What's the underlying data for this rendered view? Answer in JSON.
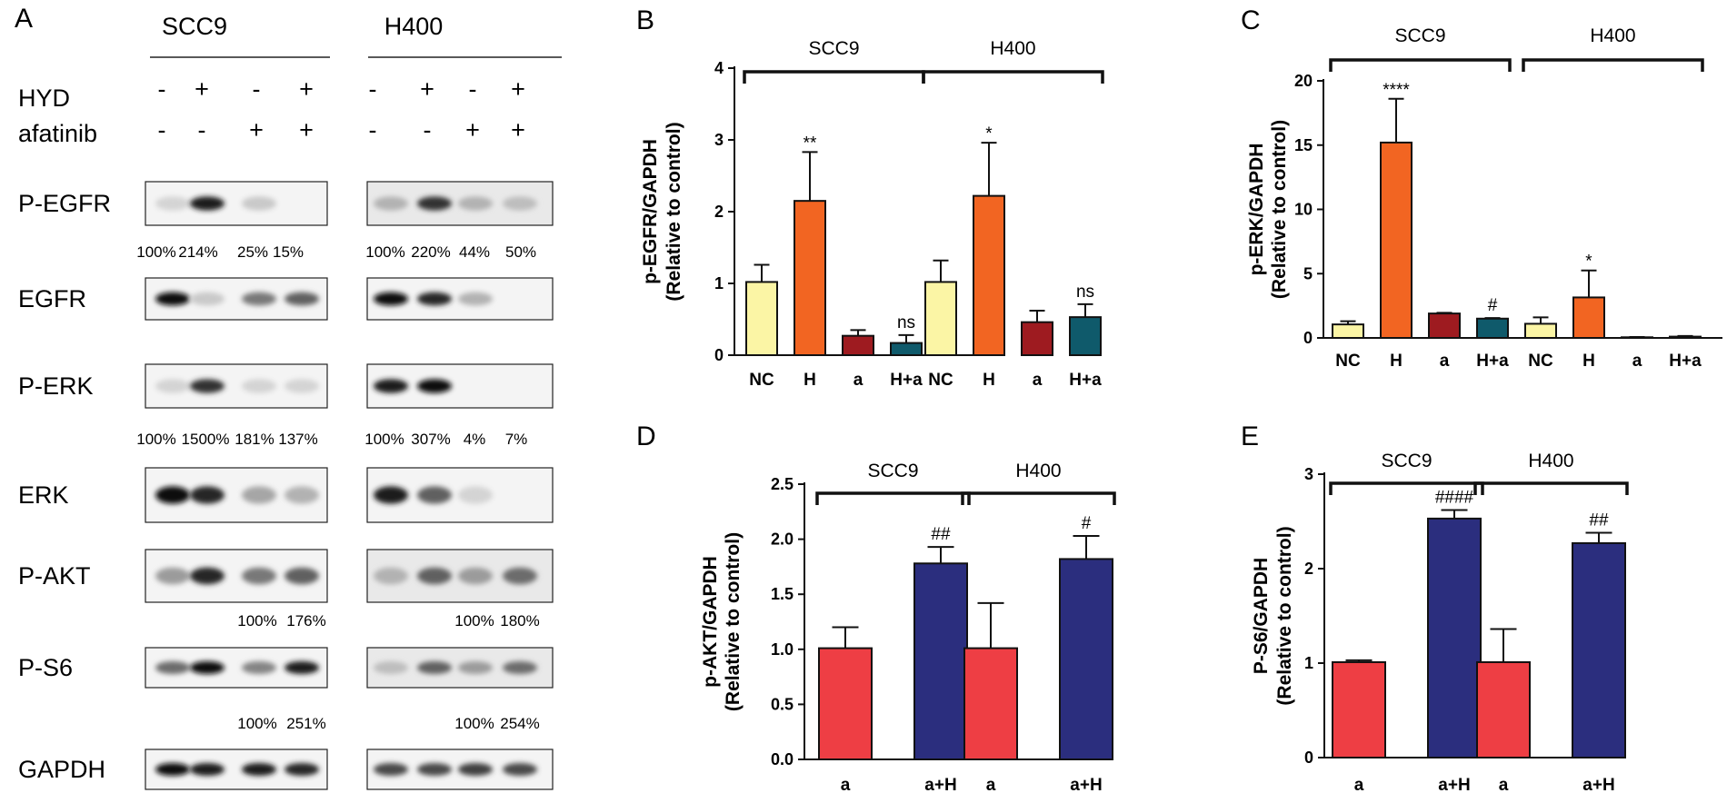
{
  "panel_a": {
    "letter": "A",
    "cell_lines": [
      "SCC9",
      "H400"
    ],
    "treatment_rows": [
      {
        "label": "HYD",
        "signs": [
          "-",
          "+",
          "-",
          "+"
        ]
      },
      {
        "label": "afatinib",
        "signs": [
          "-",
          "-",
          "+",
          "+"
        ]
      }
    ],
    "blots": [
      {
        "label": "P-EGFR",
        "scc9_pct": [
          "100%",
          "214%",
          "25%",
          "15%"
        ],
        "h400_pct": [
          "100%",
          "220%",
          "44%",
          "50%"
        ]
      },
      {
        "label": "EGFR"
      },
      {
        "label": "P-ERK",
        "scc9_pct": [
          "100%",
          "1500%",
          "181%",
          "137%"
        ],
        "h400_pct": [
          "100%",
          "307%",
          "4%",
          "7%"
        ]
      },
      {
        "label": "ERK"
      },
      {
        "label": "P-AKT",
        "scc9_pct": [
          "100%",
          "176%"
        ],
        "h400_pct": [
          "100%",
          "180%"
        ]
      },
      {
        "label": "P-S6",
        "scc9_pct": [
          "100%",
          "251%"
        ],
        "h400_pct": [
          "100%",
          "254%"
        ]
      },
      {
        "label": "GAPDH"
      }
    ]
  },
  "chart_data": [
    {
      "panel": "B",
      "type": "bar",
      "ylabel": "p-EGFR/GAPDH",
      "ylabel2": "(Relative to control)",
      "ylim": [
        0,
        4
      ],
      "yticks": [
        "0",
        "1",
        "2",
        "3",
        "4"
      ],
      "groups": [
        {
          "name": "SCC9",
          "categories": [
            "NC",
            "H",
            "a",
            "H+a"
          ],
          "values": [
            1.02,
            2.15,
            0.27,
            0.17
          ],
          "errors": [
            0.24,
            0.68,
            0.08,
            0.11
          ],
          "sig": [
            "",
            "**",
            "",
            "ns"
          ]
        },
        {
          "name": "H400",
          "categories": [
            "NC",
            "H",
            "a",
            "H+a"
          ],
          "values": [
            1.02,
            2.22,
            0.46,
            0.53
          ],
          "errors": [
            0.3,
            0.74,
            0.16,
            0.18
          ],
          "sig": [
            "",
            "*",
            "",
            "ns"
          ]
        }
      ],
      "colors": [
        "#fbf5a5",
        "#f26522",
        "#9e1b20",
        "#0f5a6b"
      ]
    },
    {
      "panel": "C",
      "type": "bar",
      "ylabel": "p-ERK/GAPDH",
      "ylabel2": "(Relative to control)",
      "ylim": [
        0,
        20
      ],
      "yticks": [
        "0",
        "5",
        "10",
        "15",
        "20"
      ],
      "groups": [
        {
          "name": "SCC9",
          "categories": [
            "NC",
            "H",
            "a",
            "H+a"
          ],
          "values": [
            1.05,
            15.2,
            1.9,
            1.5
          ],
          "errors": [
            0.25,
            3.4,
            0.05,
            0.05
          ],
          "sig": [
            "",
            "****",
            "",
            "#"
          ]
        },
        {
          "name": "H400",
          "categories": [
            "NC",
            "H",
            "a",
            "H+a"
          ],
          "values": [
            1.1,
            3.15,
            0.05,
            0.1
          ],
          "errors": [
            0.5,
            2.1,
            0.02,
            0.05
          ],
          "sig": [
            "",
            "*",
            "",
            ""
          ]
        }
      ],
      "colors": [
        "#fbf5a5",
        "#f26522",
        "#9e1b20",
        "#0f5a6b"
      ]
    },
    {
      "panel": "D",
      "type": "bar",
      "ylabel": "p-AKT/GAPDH",
      "ylabel2": "(Relative to control)",
      "ylim": [
        0,
        2.5
      ],
      "yticks": [
        "0.0",
        "0.5",
        "1.0",
        "1.5",
        "2.0",
        "2.5"
      ],
      "groups": [
        {
          "name": "SCC9",
          "categories": [
            "a",
            "a+H"
          ],
          "values": [
            1.01,
            1.78
          ],
          "errors": [
            0.19,
            0.15
          ],
          "sig": [
            "",
            "##"
          ]
        },
        {
          "name": "H400",
          "categories": [
            "a",
            "a+H"
          ],
          "values": [
            1.01,
            1.82
          ],
          "errors": [
            0.41,
            0.21
          ],
          "sig": [
            "",
            "#"
          ]
        }
      ],
      "colors": [
        "#ee3e44",
        "#2b2e7e"
      ]
    },
    {
      "panel": "E",
      "type": "bar",
      "ylabel": "P-S6/GAPDH",
      "ylabel2": "(Relative to control)",
      "ylim": [
        0,
        3
      ],
      "yticks": [
        "0",
        "1",
        "2",
        "3"
      ],
      "groups": [
        {
          "name": "SCC9",
          "categories": [
            "a",
            "a+H"
          ],
          "values": [
            1.01,
            2.53
          ],
          "errors": [
            0.02,
            0.09
          ],
          "sig": [
            "",
            "####"
          ]
        },
        {
          "name": "H400",
          "categories": [
            "a",
            "a+H"
          ],
          "values": [
            1.01,
            2.27
          ],
          "errors": [
            0.35,
            0.11
          ],
          "sig": [
            "",
            "##"
          ]
        }
      ],
      "colors": [
        "#ee3e44",
        "#2b2e7e"
      ]
    }
  ]
}
